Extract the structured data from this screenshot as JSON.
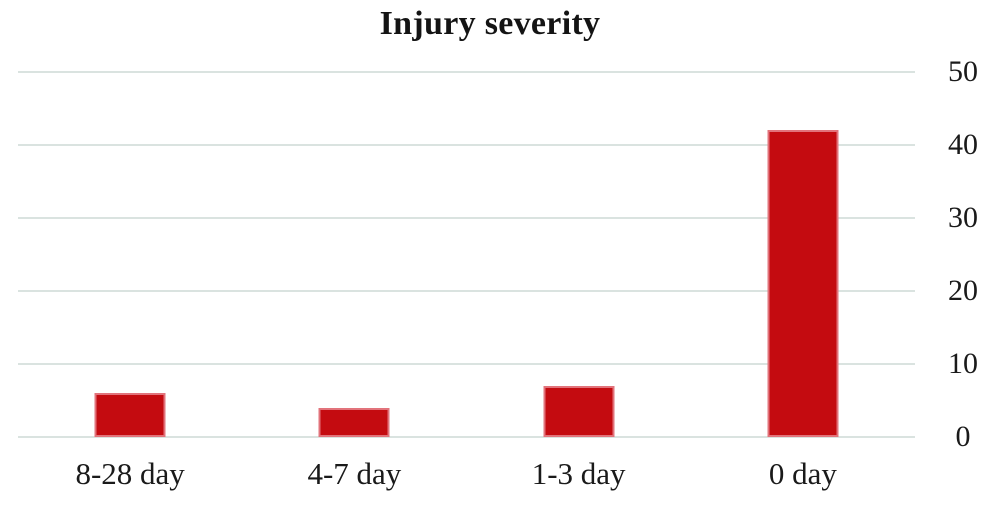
{
  "chart_data": {
    "type": "bar",
    "title": "Injury severity",
    "categories": [
      "8-28 day",
      "4-7 day",
      "1-3 day",
      "0 day"
    ],
    "values": [
      6,
      4,
      7,
      42
    ],
    "xlabel": "",
    "ylabel": "",
    "ylim": [
      0,
      50
    ],
    "yticks": [
      0,
      10,
      20,
      30,
      40,
      50
    ],
    "y_axis_position": "right",
    "grid": true,
    "legend": false,
    "colors": {
      "bar_fill": "#c40b10",
      "bar_border": "#e2737b",
      "gridline": "#dae3e0",
      "text": "#1a1a1a",
      "title_text": "#141414"
    }
  }
}
